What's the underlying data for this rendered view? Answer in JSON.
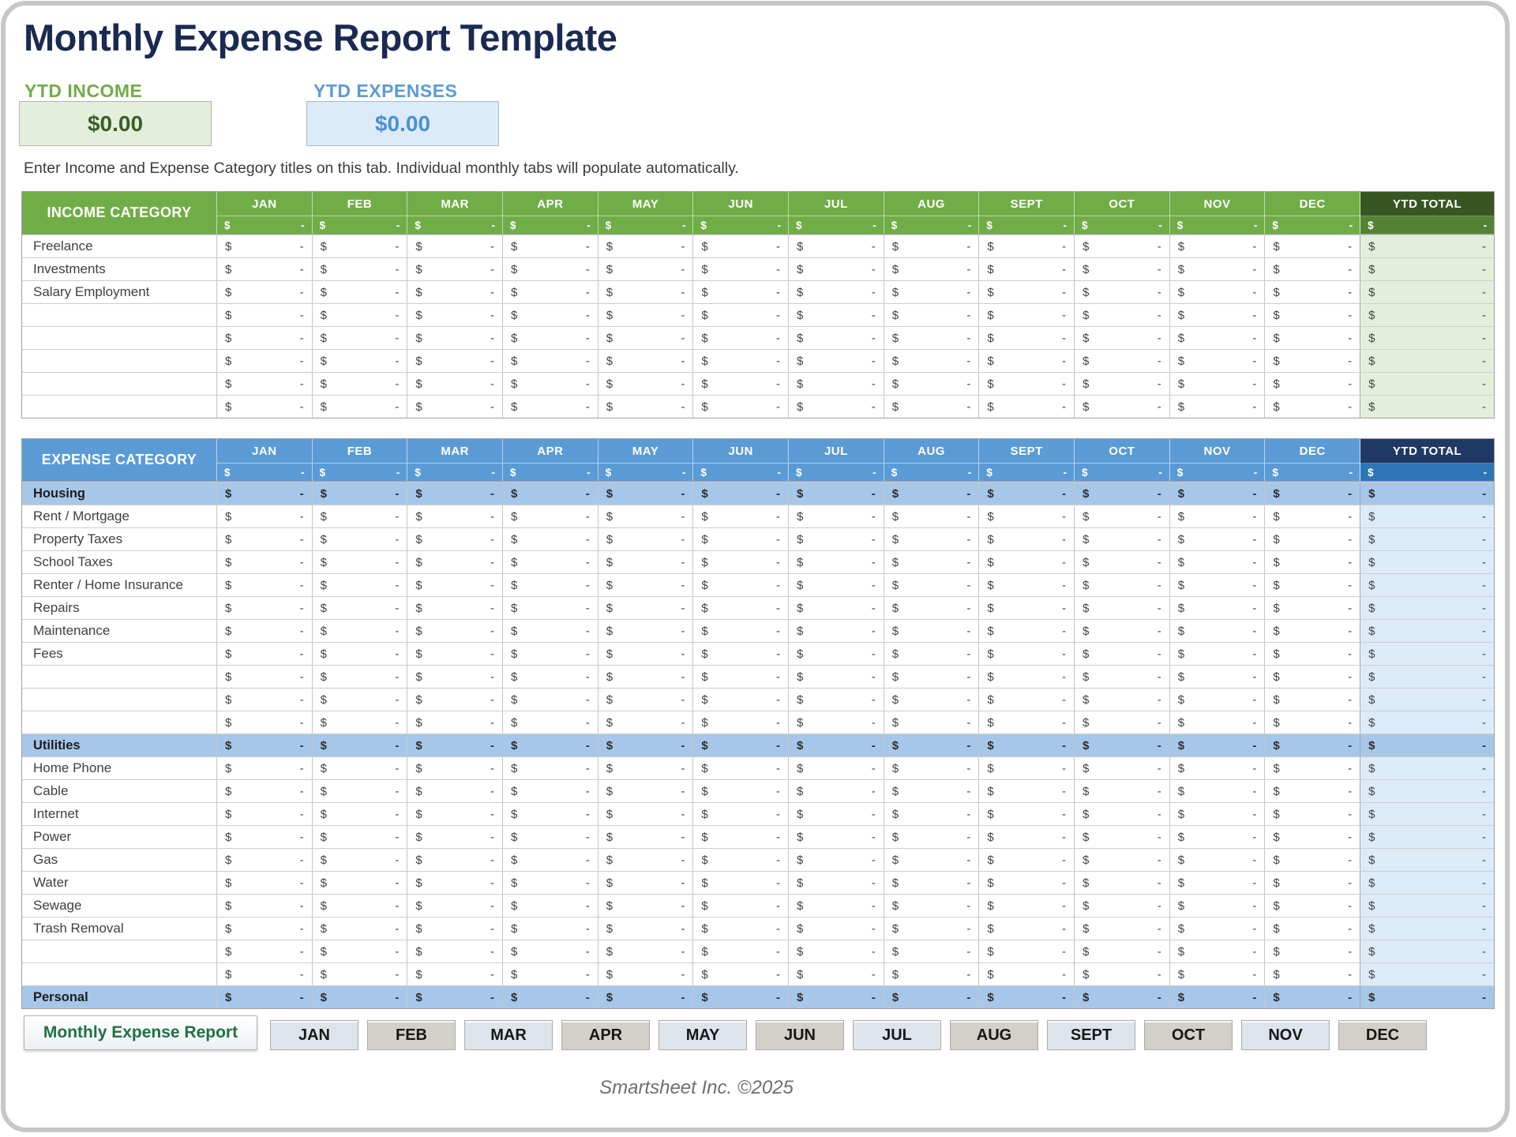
{
  "page": {
    "title": "Monthly Expense Report Template",
    "instruction": "Enter Income and Expense Category titles on this tab.  Individual monthly tabs will populate automatically.",
    "footer": "Smartsheet Inc. ©2025"
  },
  "summary": {
    "income": {
      "label": "YTD INCOME",
      "value": "$0.00"
    },
    "expenses": {
      "label": "YTD EXPENSES",
      "value": "$0.00"
    }
  },
  "months": [
    "JAN",
    "FEB",
    "MAR",
    "APR",
    "MAY",
    "JUN",
    "JUL",
    "AUG",
    "SEPT",
    "OCT",
    "NOV",
    "DEC"
  ],
  "cell_placeholder": {
    "currency": "$",
    "amount": "-"
  },
  "income_table": {
    "category_header": "INCOME CATEGORY",
    "ytd_header": "YTD TOTAL",
    "rows": [
      {
        "type": "item",
        "label": "Freelance"
      },
      {
        "type": "item",
        "label": "Investments"
      },
      {
        "type": "item",
        "label": "Salary Employment"
      },
      {
        "type": "empty",
        "label": ""
      },
      {
        "type": "empty",
        "label": ""
      },
      {
        "type": "empty",
        "label": ""
      },
      {
        "type": "empty",
        "label": ""
      },
      {
        "type": "empty",
        "label": ""
      }
    ]
  },
  "expense_table": {
    "category_header": "EXPENSE CATEGORY",
    "ytd_header": "YTD TOTAL",
    "rows": [
      {
        "type": "section",
        "label": "Housing"
      },
      {
        "type": "item",
        "label": "Rent / Mortgage"
      },
      {
        "type": "item",
        "label": "Property Taxes"
      },
      {
        "type": "item",
        "label": "School Taxes"
      },
      {
        "type": "item",
        "label": "Renter / Home Insurance"
      },
      {
        "type": "item",
        "label": "Repairs"
      },
      {
        "type": "item",
        "label": "Maintenance"
      },
      {
        "type": "item",
        "label": "Fees"
      },
      {
        "type": "empty",
        "label": ""
      },
      {
        "type": "empty",
        "label": ""
      },
      {
        "type": "empty",
        "label": ""
      },
      {
        "type": "section",
        "label": "Utilities"
      },
      {
        "type": "item",
        "label": "Home Phone"
      },
      {
        "type": "item",
        "label": "Cable"
      },
      {
        "type": "item",
        "label": "Internet"
      },
      {
        "type": "item",
        "label": "Power"
      },
      {
        "type": "item",
        "label": "Gas"
      },
      {
        "type": "item",
        "label": "Water"
      },
      {
        "type": "item",
        "label": "Sewage"
      },
      {
        "type": "item",
        "label": "Trash Removal"
      },
      {
        "type": "empty",
        "label": ""
      },
      {
        "type": "empty",
        "label": ""
      },
      {
        "type": "section",
        "label": "Personal"
      }
    ]
  },
  "tabs": {
    "active": "Monthly Expense Report",
    "months": [
      "JAN",
      "FEB",
      "MAR",
      "APR",
      "MAY",
      "JUN",
      "JUL",
      "AUG",
      "SEPT",
      "OCT",
      "NOV",
      "DEC"
    ]
  },
  "colors": {
    "title_navy": "#1b2a52",
    "green": "#71ad47",
    "dark_green": "#375623",
    "mid_green": "#548235",
    "light_green": "#e4efdb",
    "blue": "#5b9bd5",
    "navy": "#1f3864",
    "mid_blue": "#2e75b6",
    "light_blue": "#dcebf8",
    "section_blue": "#a6c7e9",
    "tab_green": "#1e7245"
  }
}
